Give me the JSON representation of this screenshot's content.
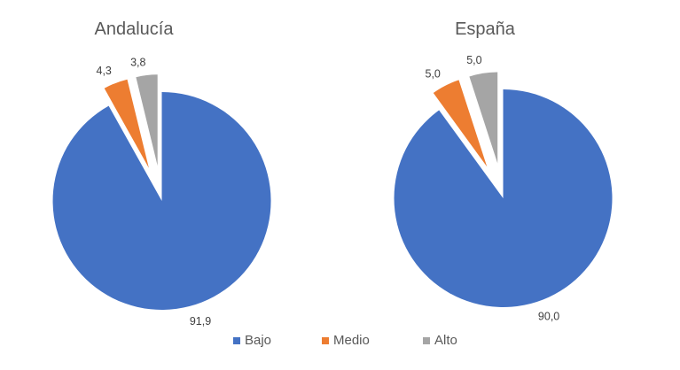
{
  "page": {
    "background": "#ffffff"
  },
  "text_colors": {
    "title": "#595959",
    "label": "#404040",
    "legend": "#595959"
  },
  "legend": {
    "position": "bottom",
    "items": [
      {
        "label": "Bajo",
        "color": "#4472C4"
      },
      {
        "label": "Medio",
        "color": "#ED7D31"
      },
      {
        "label": "Alto",
        "color": "#A5A5A5"
      }
    ]
  },
  "chart_data": [
    {
      "type": "pie",
      "title": "Andalucía",
      "categories": [
        "Bajo",
        "Medio",
        "Alto"
      ],
      "values": [
        91.9,
        4.3,
        3.8
      ],
      "value_labels": [
        "91,9",
        "4,3",
        "3,8"
      ],
      "colors": [
        "#4472C4",
        "#ED7D31",
        "#A5A5A5"
      ],
      "exploded": [
        false,
        true,
        true
      ],
      "start_angle_deg": 0,
      "direction": "clockwise",
      "legend_position": "bottom"
    },
    {
      "type": "pie",
      "title": "España",
      "categories": [
        "Bajo",
        "Medio",
        "Alto"
      ],
      "values": [
        90.0,
        5.0,
        5.0
      ],
      "value_labels": [
        "90,0",
        "5,0",
        "5,0"
      ],
      "colors": [
        "#4472C4",
        "#ED7D31",
        "#A5A5A5"
      ],
      "exploded": [
        false,
        true,
        true
      ],
      "start_angle_deg": 0,
      "direction": "clockwise",
      "legend_position": "bottom"
    }
  ]
}
